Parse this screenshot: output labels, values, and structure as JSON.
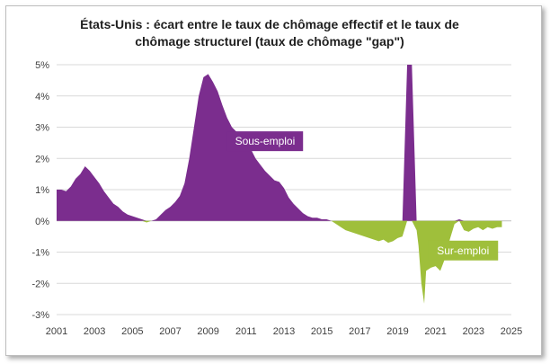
{
  "title_line1": "États-Unis : écart entre le taux de chômage effectif et le taux de",
  "title_line2": "chômage structurel (taux de chômage \"gap\")",
  "colors": {
    "positive": "#7b2d8e",
    "negative": "#9fbf3b",
    "grid": "#d9d9d9",
    "axis": "#bfbfbf"
  },
  "chart_data": {
    "type": "area",
    "title": "États-Unis : écart entre le taux de chômage effectif et le taux de chômage structurel (taux de chômage \"gap\")",
    "xlabel": "",
    "ylabel": "",
    "xlim": [
      2001,
      2025
    ],
    "ylim": [
      -3,
      5
    ],
    "y_ticks": [
      -3,
      -2,
      -1,
      0,
      1,
      2,
      3,
      4,
      5
    ],
    "y_tick_labels": [
      "-3%",
      "-2%",
      "-1%",
      "0%",
      "1%",
      "2%",
      "3%",
      "4%",
      "5%"
    ],
    "x_ticks": [
      2001,
      2003,
      2005,
      2007,
      2009,
      2011,
      2013,
      2015,
      2017,
      2019,
      2021,
      2023,
      2025
    ],
    "x_tick_labels": [
      "2001",
      "2003",
      "2005",
      "2007",
      "2009",
      "2011",
      "2013",
      "2015",
      "2017",
      "2019",
      "2021",
      "2023",
      "2025"
    ],
    "annotations": [
      {
        "text": "Sous-emploi",
        "x": 2012.0,
        "y": 2.55,
        "color": "#7b2d8e"
      },
      {
        "text": "Sur-emploi",
        "x": 2022.45,
        "y": -0.95,
        "color": "#9fbf3b"
      }
    ],
    "series": [
      {
        "name": "taux de chômage gap",
        "x": [
          2001.0,
          2001.25,
          2001.5,
          2001.75,
          2002.0,
          2002.25,
          2002.5,
          2002.75,
          2003.0,
          2003.25,
          2003.5,
          2003.75,
          2004.0,
          2004.25,
          2004.5,
          2004.75,
          2005.0,
          2005.25,
          2005.5,
          2005.75,
          2006.0,
          2006.25,
          2006.5,
          2006.75,
          2007.0,
          2007.25,
          2007.5,
          2007.75,
          2008.0,
          2008.25,
          2008.5,
          2008.75,
          2009.0,
          2009.25,
          2009.5,
          2009.75,
          2010.0,
          2010.25,
          2010.5,
          2010.75,
          2011.0,
          2011.25,
          2011.5,
          2011.75,
          2012.0,
          2012.25,
          2012.5,
          2012.75,
          2013.0,
          2013.25,
          2013.5,
          2013.75,
          2014.0,
          2014.25,
          2014.5,
          2014.75,
          2015.0,
          2015.25,
          2015.5,
          2015.75,
          2016.0,
          2016.25,
          2016.5,
          2016.75,
          2017.0,
          2017.25,
          2017.5,
          2017.75,
          2018.0,
          2018.25,
          2018.5,
          2018.75,
          2019.0,
          2019.25,
          2019.5,
          2019.75,
          2020.0,
          2020.1,
          2020.25,
          2020.4,
          2020.5,
          2020.75,
          2021.0,
          2021.25,
          2021.5,
          2021.75,
          2022.0,
          2022.25,
          2022.5,
          2022.75,
          2023.0,
          2023.25,
          2023.5,
          2023.75,
          2024.0,
          2024.25,
          2024.5
        ],
        "y": [
          1.0,
          1.0,
          0.95,
          1.1,
          1.35,
          1.5,
          1.75,
          1.6,
          1.4,
          1.2,
          0.95,
          0.75,
          0.55,
          0.45,
          0.3,
          0.2,
          0.15,
          0.1,
          0.05,
          -0.05,
          0.0,
          0.05,
          0.2,
          0.35,
          0.45,
          0.6,
          0.8,
          1.2,
          2.0,
          3.0,
          4.0,
          4.6,
          4.7,
          4.45,
          4.15,
          3.7,
          3.3,
          3.0,
          2.85,
          2.7,
          2.55,
          2.3,
          2.0,
          1.8,
          1.6,
          1.45,
          1.3,
          1.25,
          1.05,
          0.75,
          0.55,
          0.4,
          0.25,
          0.15,
          0.1,
          0.1,
          0.05,
          0.05,
          0.0,
          -0.1,
          -0.2,
          -0.3,
          -0.35,
          -0.4,
          -0.45,
          -0.5,
          -0.55,
          -0.6,
          -0.65,
          -0.6,
          -0.7,
          -0.65,
          -0.55,
          -0.5,
          5.0,
          5.0,
          -0.3,
          -0.8,
          -2.0,
          -2.65,
          -1.6,
          -1.5,
          -1.45,
          -1.6,
          -1.2,
          -0.6,
          -0.1,
          0.05,
          -0.3,
          -0.35,
          -0.25,
          -0.2,
          -0.3,
          -0.2,
          -0.25,
          -0.2,
          -0.2
        ]
      }
    ]
  }
}
